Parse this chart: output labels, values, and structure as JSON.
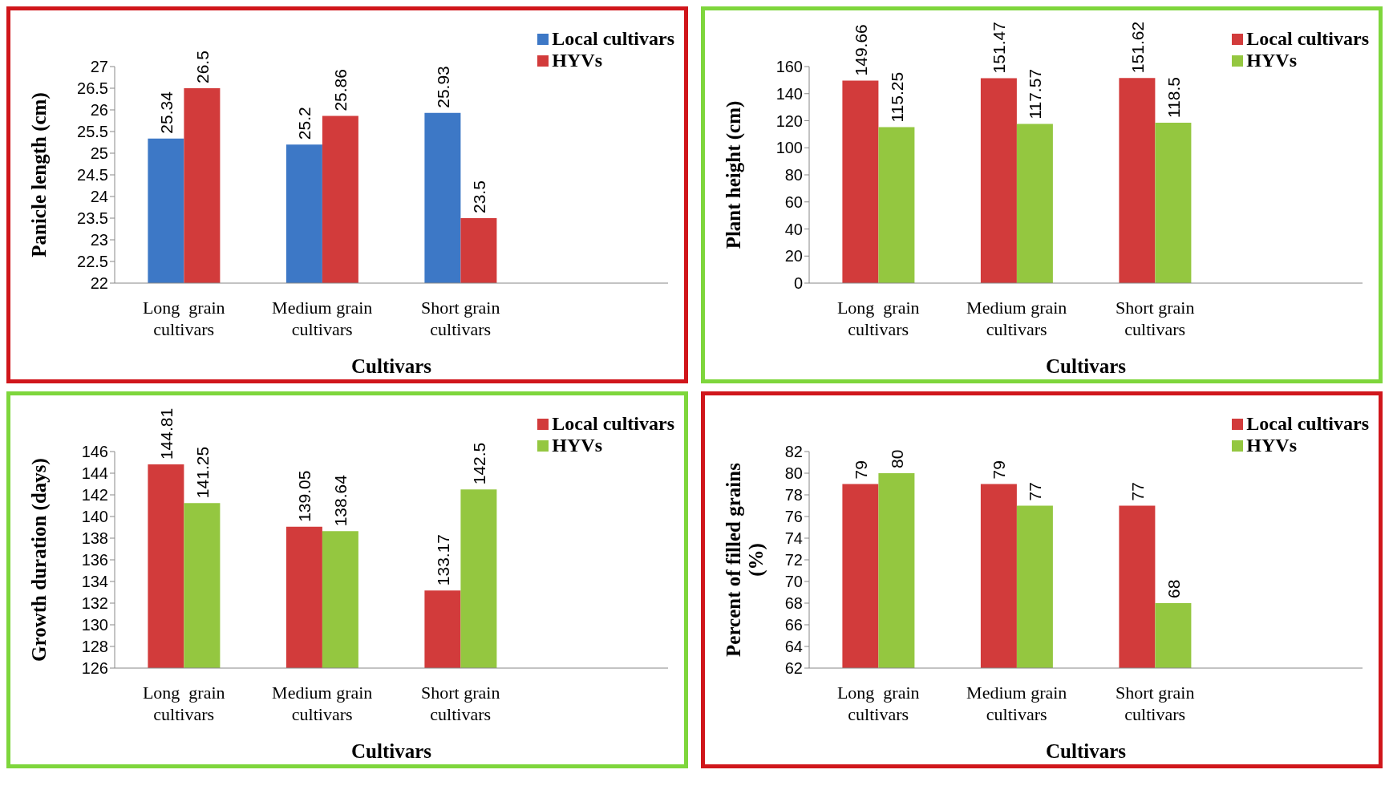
{
  "chart_data": [
    {
      "type": "bar",
      "xlabel": "Cultivars",
      "ylabel": "Panicle length (cm)",
      "categories": [
        "Long  grain cultivars",
        "Medium grain cultivars",
        "Short grain cultivars",
        null
      ],
      "series": [
        {
          "name": "Local cultivars",
          "color": "#3d78c6",
          "values": [
            25.34,
            25.2,
            25.93,
            null
          ]
        },
        {
          "name": "HYVs",
          "color": "#d23b3b",
          "values": [
            26.5,
            25.86,
            23.5,
            null
          ]
        }
      ],
      "ylim": [
        22,
        27
      ],
      "yticks": [
        22,
        22.5,
        23,
        23.5,
        24,
        24.5,
        25,
        25.5,
        26,
        26.5,
        27
      ],
      "data_labels": true,
      "legend": "top right",
      "grid": false
    },
    {
      "type": "bar",
      "xlabel": "Cultivars",
      "ylabel": "Plant height (cm)",
      "categories": [
        "Long  grain cultivars",
        "Medium grain cultivars",
        "Short grain cultivars",
        null
      ],
      "series": [
        {
          "name": "Local cultivars",
          "color": "#d23b3b",
          "values": [
            149.66,
            151.47,
            151.62,
            null
          ]
        },
        {
          "name": "HYVs",
          "color": "#94c740",
          "values": [
            115.25,
            117.57,
            118.5,
            null
          ]
        }
      ],
      "ylim": [
        0,
        160
      ],
      "yticks": [
        0,
        20,
        40,
        60,
        80,
        100,
        120,
        140,
        160
      ],
      "data_labels": true,
      "legend": "top right",
      "grid": false
    },
    {
      "type": "bar",
      "xlabel": "Cultivars",
      "ylabel": "Growth duration (days)",
      "categories": [
        "Long  grain cultivars",
        "Medium grain cultivars",
        "Short grain cultivars",
        null
      ],
      "series": [
        {
          "name": "Local cultivars",
          "color": "#d23b3b",
          "values": [
            144.81,
            139.05,
            133.17,
            null
          ]
        },
        {
          "name": "HYVs",
          "color": "#94c740",
          "values": [
            141.25,
            138.64,
            142.5,
            null
          ]
        }
      ],
      "ylim": [
        126,
        146
      ],
      "yticks": [
        126,
        128,
        130,
        132,
        134,
        136,
        138,
        140,
        142,
        144,
        146
      ],
      "data_labels": true,
      "legend": "top right",
      "grid": false
    },
    {
      "type": "bar",
      "xlabel": "Cultivars",
      "ylabel": "Percent of filled grains (%)",
      "categories": [
        "Long  grain cultivars",
        "Medium grain cultivars",
        "Short grain cultivars",
        null
      ],
      "series": [
        {
          "name": "Local cultivars",
          "color": "#d23b3b",
          "values": [
            79,
            79,
            77,
            null
          ]
        },
        {
          "name": "HYVs",
          "color": "#94c740",
          "values": [
            80,
            77,
            68,
            null
          ]
        }
      ],
      "ylim": [
        62,
        82
      ],
      "yticks": [
        62,
        64,
        66,
        68,
        70,
        72,
        74,
        76,
        78,
        80,
        82
      ],
      "data_labels": true,
      "legend": "top right",
      "grid": false
    }
  ]
}
